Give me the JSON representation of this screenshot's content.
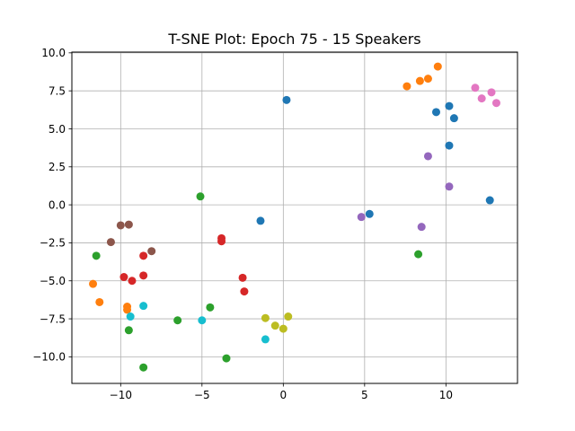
{
  "chart_data": {
    "type": "scatter",
    "title": "T-SNE Plot: Epoch 75 - 15 Speakers",
    "xlabel": "",
    "ylabel": "",
    "xlim": [
      -13.0,
      14.4
    ],
    "ylim": [
      -11.75,
      10.05
    ],
    "grid": true,
    "xticks": [
      -10,
      -5,
      0,
      5,
      10
    ],
    "xtick_labels": [
      "−10",
      "−5",
      "0",
      "5",
      "10"
    ],
    "yticks": [
      -10.0,
      -7.5,
      -5.0,
      -2.5,
      0.0,
      2.5,
      5.0,
      7.5,
      10.0
    ],
    "ytick_labels": [
      "−10.0",
      "−7.5",
      "−5.0",
      "−2.5",
      "0.0",
      "2.5",
      "5.0",
      "7.5",
      "10.0"
    ],
    "series": [
      {
        "color": "#1f77b4",
        "points": [
          [
            0.2,
            6.9
          ],
          [
            9.4,
            6.1
          ],
          [
            10.2,
            6.5
          ],
          [
            10.5,
            5.7
          ],
          [
            10.2,
            3.9
          ],
          [
            12.7,
            0.3
          ],
          [
            5.3,
            -0.6
          ],
          [
            -1.4,
            -1.05
          ]
        ]
      },
      {
        "color": "#ff7f0e",
        "points": [
          [
            9.5,
            9.1
          ],
          [
            8.9,
            8.3
          ],
          [
            8.4,
            8.15
          ],
          [
            7.6,
            7.8
          ],
          [
            -11.7,
            -5.2
          ],
          [
            -11.3,
            -6.4
          ],
          [
            -9.6,
            -6.7
          ],
          [
            -9.6,
            -6.9
          ]
        ]
      },
      {
        "color": "#2ca02c",
        "points": [
          [
            -5.1,
            0.55
          ],
          [
            -11.5,
            -3.35
          ],
          [
            8.3,
            -3.25
          ],
          [
            -4.5,
            -6.75
          ],
          [
            -6.5,
            -7.6
          ],
          [
            -9.5,
            -8.25
          ],
          [
            -3.5,
            -10.1
          ],
          [
            -8.6,
            -10.7
          ]
        ]
      },
      {
        "color": "#d62728",
        "points": [
          [
            -3.8,
            -2.2
          ],
          [
            -3.8,
            -2.4
          ],
          [
            -8.6,
            -3.35
          ],
          [
            -9.8,
            -4.75
          ],
          [
            -8.6,
            -4.65
          ],
          [
            -9.3,
            -5.0
          ],
          [
            -2.5,
            -4.8
          ],
          [
            -2.4,
            -5.7
          ]
        ]
      },
      {
        "color": "#9467bd",
        "points": [
          [
            8.9,
            3.2
          ],
          [
            10.2,
            1.2
          ],
          [
            4.8,
            -0.8
          ],
          [
            8.5,
            -1.45
          ]
        ]
      },
      {
        "color": "#8c564b",
        "points": [
          [
            -10.0,
            -1.35
          ],
          [
            -9.5,
            -1.3
          ],
          [
            -10.6,
            -2.45
          ],
          [
            -8.1,
            -3.05
          ]
        ]
      },
      {
        "color": "#e377c2",
        "points": [
          [
            11.8,
            7.7
          ],
          [
            12.8,
            7.4
          ],
          [
            12.2,
            7.0
          ],
          [
            13.1,
            6.7
          ]
        ]
      },
      {
        "color": "#bcbd22",
        "points": [
          [
            -1.1,
            -7.45
          ],
          [
            0.3,
            -7.35
          ],
          [
            -0.5,
            -7.95
          ],
          [
            0.0,
            -8.15
          ]
        ]
      },
      {
        "color": "#17becf",
        "points": [
          [
            -8.6,
            -6.65
          ],
          [
            -9.4,
            -7.35
          ],
          [
            -5.0,
            -7.6
          ],
          [
            -1.1,
            -8.85
          ]
        ]
      }
    ]
  }
}
